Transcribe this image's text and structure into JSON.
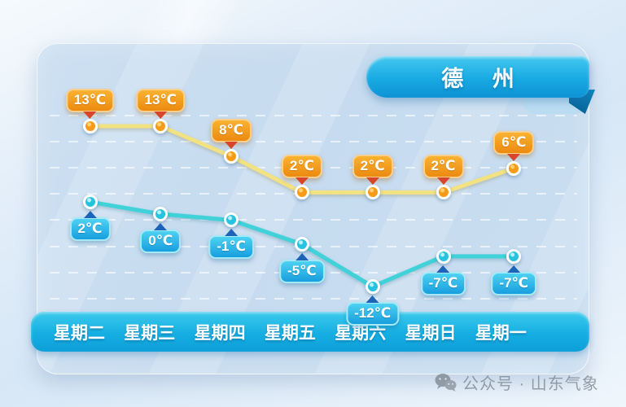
{
  "header": {
    "title": "德 州"
  },
  "chart_data": {
    "type": "line",
    "title": "德 州",
    "categories": [
      "星期二",
      "星期三",
      "星期四",
      "星期五",
      "星期六",
      "星期日",
      "星期一"
    ],
    "series": [
      {
        "name": "high",
        "values": [
          13,
          13,
          8,
          2,
          2,
          2,
          6
        ],
        "labels": [
          "13℃",
          "13℃",
          "8℃",
          "2℃",
          "2℃",
          "2℃",
          "6℃"
        ]
      },
      {
        "name": "low",
        "values": [
          2,
          0,
          -1,
          -5,
          -12,
          -7,
          -7
        ],
        "labels": [
          "2℃",
          "0℃",
          "-1℃",
          "-5℃",
          "-12℃",
          "-7℃",
          "-7℃"
        ]
      }
    ],
    "ylim": [
      -14,
      15
    ],
    "grid": "horizontal-dashed",
    "legend": "none"
  },
  "watermark": {
    "label": "公众号 · 山东气象",
    "icon": "wechat-icon"
  },
  "colors": {
    "high_line": "#f2e282",
    "high_marker": "#f59b17",
    "high_badge_top": "#f9b231",
    "high_badge_bottom": "#ec8a10",
    "high_pointer": "#d9452a",
    "low_line": "#40d2d8",
    "low_marker": "#27c2de",
    "low_badge_top": "#4ed2f2",
    "low_badge_bottom": "#179ede",
    "low_pointer": "#1d64b8",
    "ribbon": "#18aae3",
    "day_bar": "#16aee2",
    "watermark_text": "#7f8a94"
  }
}
